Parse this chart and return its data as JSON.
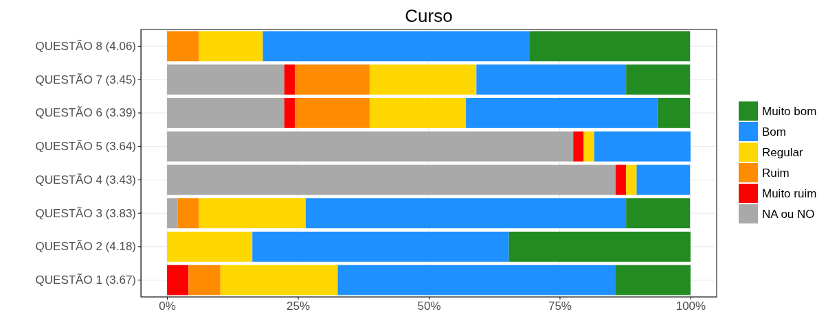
{
  "chart_data": {
    "type": "bar",
    "orientation": "horizontal",
    "stacked": true,
    "title": "Curso",
    "categories": [
      "QUESTÃO 8 (4.06)",
      "QUESTÃO 7 (3.45)",
      "QUESTÃO 6 (3.39)",
      "QUESTÃO 5 (3.64)",
      "QUESTÃO 4 (3.43)",
      "QUESTÃO 3 (3.83)",
      "QUESTÃO 2 (4.18)",
      "QUESTÃO 1 (3.67)"
    ],
    "series": [
      {
        "name": "NA ou NO",
        "color": "#a9a9a9",
        "values": [
          0,
          22.4,
          22.4,
          77.6,
          85.7,
          2.0,
          0,
          0
        ]
      },
      {
        "name": "Muito ruim",
        "color": "#ff0000",
        "values": [
          0,
          2.0,
          2.0,
          2.0,
          2.0,
          0,
          0,
          4.1
        ]
      },
      {
        "name": "Ruim",
        "color": "#ff8c00",
        "values": [
          6.1,
          14.3,
          14.3,
          0,
          0,
          4.1,
          0,
          6.1
        ]
      },
      {
        "name": "Regular",
        "color": "#ffd700",
        "values": [
          12.2,
          20.4,
          18.4,
          2.0,
          2.0,
          20.4,
          16.3,
          22.4
        ]
      },
      {
        "name": "Bom",
        "color": "#1e90ff",
        "values": [
          51.0,
          28.6,
          36.7,
          18.4,
          10.2,
          61.2,
          49.0,
          53.1
        ]
      },
      {
        "name": "Muito bom",
        "color": "#228b22",
        "values": [
          30.6,
          12.2,
          6.1,
          0,
          0,
          12.2,
          34.7,
          14.3
        ]
      }
    ],
    "xlim": [
      -5,
      105
    ],
    "xticks": [
      {
        "value": 0,
        "label": "0%"
      },
      {
        "value": 25,
        "label": "25%"
      },
      {
        "value": 50,
        "label": "50%"
      },
      {
        "value": 75,
        "label": "75%"
      },
      {
        "value": 100,
        "label": "100%"
      }
    ],
    "grid": true,
    "legend": "right"
  }
}
